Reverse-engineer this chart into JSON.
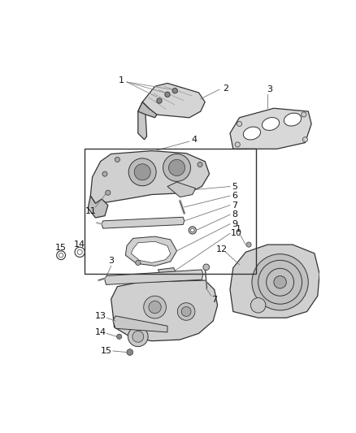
{
  "bg_color": "#ffffff",
  "fig_width": 4.38,
  "fig_height": 5.33,
  "dpi": 100,
  "lc": "#333333",
  "lc_light": "#888888",
  "fill_light": "#d8d8d8",
  "fill_mid": "#c0c0c0",
  "fill_dark": "#aaaaaa"
}
